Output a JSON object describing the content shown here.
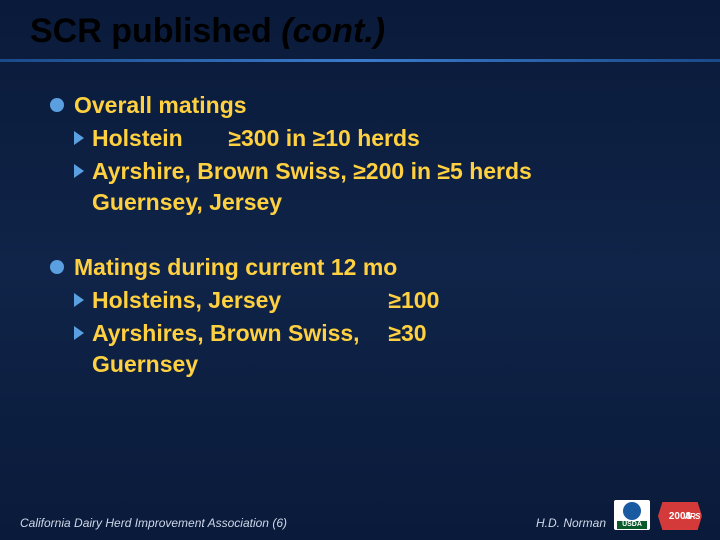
{
  "header": {
    "title_main": "SCR published",
    "title_cont": "(cont.)"
  },
  "sections": [
    {
      "heading": "Overall matings",
      "subs": [
        {
          "left": "Holstein",
          "right": "≥300 in ≥10 herds",
          "cont": ""
        },
        {
          "left": "Ayrshire, Brown Swiss,",
          "right": "≥200 in ≥5 herds",
          "cont": "Guernsey, Jersey"
        }
      ]
    },
    {
      "heading": "Matings during current 12 mo",
      "subs": [
        {
          "left": "Holsteins, Jersey",
          "right": "≥100",
          "cont": ""
        },
        {
          "left": "Ayrshires, Brown Swiss,",
          "right": "≥30",
          "cont": "Guernsey"
        }
      ]
    }
  ],
  "footer": {
    "left": "California Dairy Herd Improvement Association (6)",
    "author": "H.D. Norman",
    "logo_text": "USDA",
    "year": "2008",
    "ars": "ARS"
  },
  "colors": {
    "background_top": "#0a1a3a",
    "background_mid": "#0f2448",
    "accent_text": "#ffd040",
    "bullet": "#5aa0e0",
    "rule": "#3a7acc",
    "badge": "#d43a3a",
    "logo_blue": "#1a5aa0",
    "logo_green": "#0a5a2a"
  }
}
